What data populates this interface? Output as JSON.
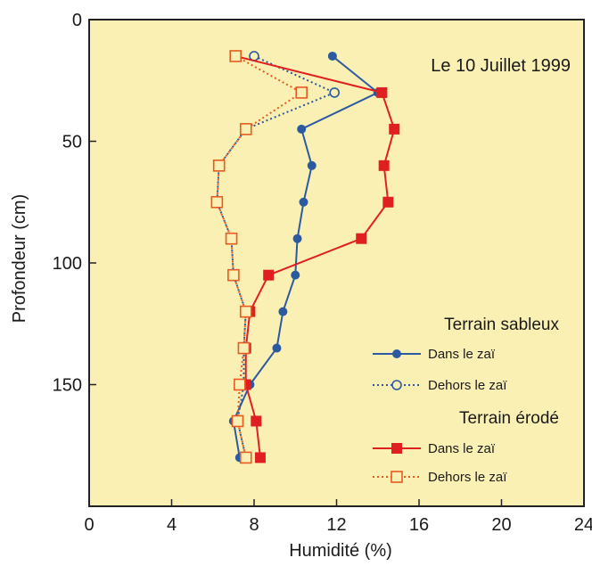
{
  "chart_data": {
    "type": "line",
    "annotation": "Le 10 Juillet 1999",
    "xlabel": "Humidité (%)",
    "ylabel": "Profondeur (cm)",
    "xlim": [
      0,
      24
    ],
    "ylim": [
      0,
      200
    ],
    "y_inverted": true,
    "x_ticks": [
      "0",
      "4",
      "8",
      "12",
      "16",
      "20",
      "24"
    ],
    "y_ticks": [
      "0",
      "50",
      "100",
      "150"
    ],
    "background": "#fbf0b4",
    "legend_position": "right",
    "legend_groups": [
      {
        "title": "Terrain sableux",
        "entries": [
          "Dans le zaï",
          "Dehors le zaï"
        ]
      },
      {
        "title": "Terrain érodé",
        "entries": [
          "Dans le zaï",
          "Dehors le zaï"
        ]
      }
    ],
    "series": [
      {
        "group": "Terrain sableux",
        "name": "Dans le zaï",
        "color": "#2c5aa0",
        "marker": "filled-circle",
        "line": "solid",
        "points": [
          [
            11.8,
            15
          ],
          [
            14.0,
            30
          ],
          [
            10.3,
            45
          ],
          [
            10.8,
            60
          ],
          [
            10.4,
            75
          ],
          [
            10.1,
            90
          ],
          [
            10.0,
            105
          ],
          [
            9.4,
            120
          ],
          [
            9.1,
            135
          ],
          [
            7.8,
            150
          ],
          [
            7.0,
            165
          ],
          [
            7.3,
            180
          ]
        ]
      },
      {
        "group": "Terrain sableux",
        "name": "Dehors le zaï",
        "color": "#2c5aa0",
        "marker": "open-circle",
        "line": "dotted",
        "points": [
          [
            8.0,
            15
          ],
          [
            11.9,
            30
          ],
          [
            7.6,
            45
          ],
          [
            6.3,
            60
          ],
          [
            6.2,
            75
          ],
          [
            6.9,
            90
          ],
          [
            7.0,
            105
          ],
          [
            7.6,
            120
          ],
          [
            7.5,
            135
          ],
          [
            7.5,
            150
          ],
          [
            7.2,
            165
          ],
          [
            7.6,
            180
          ]
        ]
      },
      {
        "group": "Terrain érodé",
        "name": "Dans le zaï",
        "color": "#e02020",
        "marker": "filled-square",
        "line": "solid",
        "points": [
          [
            7.1,
            15
          ],
          [
            14.2,
            30
          ],
          [
            14.8,
            45
          ],
          [
            14.3,
            60
          ],
          [
            14.5,
            75
          ],
          [
            13.2,
            90
          ],
          [
            8.7,
            105
          ],
          [
            7.8,
            120
          ],
          [
            7.6,
            135
          ],
          [
            7.6,
            150
          ],
          [
            8.1,
            165
          ],
          [
            8.3,
            180
          ]
        ]
      },
      {
        "group": "Terrain érodé",
        "name": "Dehors le zaï",
        "color": "#e85a20",
        "marker": "open-square",
        "line": "dotted",
        "points": [
          [
            7.1,
            15
          ],
          [
            10.3,
            30
          ],
          [
            7.6,
            45
          ],
          [
            6.3,
            60
          ],
          [
            6.2,
            75
          ],
          [
            6.9,
            90
          ],
          [
            7.0,
            105
          ],
          [
            7.6,
            120
          ],
          [
            7.5,
            135
          ],
          [
            7.3,
            150
          ],
          [
            7.2,
            165
          ],
          [
            7.6,
            180
          ]
        ]
      }
    ]
  }
}
